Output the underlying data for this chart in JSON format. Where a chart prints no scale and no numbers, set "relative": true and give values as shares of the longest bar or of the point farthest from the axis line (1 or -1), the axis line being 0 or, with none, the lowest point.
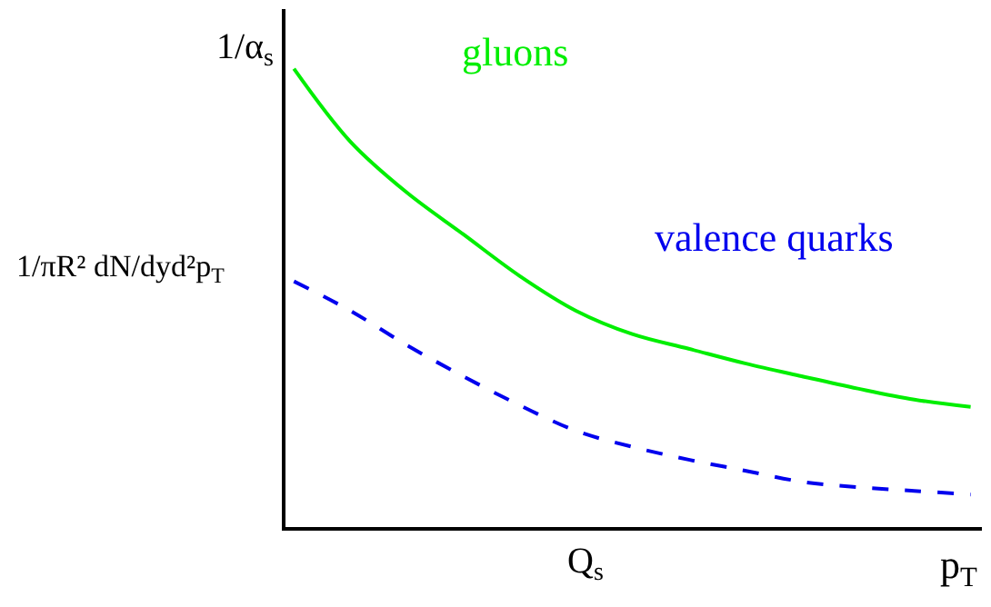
{
  "chart_data": {
    "type": "line",
    "relative": true,
    "xlabel": "p$_{T}$",
    "ylabel": "1/πR² dN/dyd²p$_{T}$",
    "categories": [
      null,
      null,
      null,
      null,
      null,
      null,
      null,
      null,
      null,
      null,
      null,
      null,
      null
    ],
    "series": [
      {
        "name": "gluons",
        "color": "#00ee00",
        "line_style": "solid",
        "values": [
          1.0,
          0.841,
          0.73,
          0.639,
          0.548,
          0.472,
          0.421,
          0.389,
          0.357,
          0.329,
          0.302,
          0.278,
          0.262
        ]
      },
      {
        "name": "valence quarks",
        "color": "#0000ee",
        "line_style": "dashed",
        "values": [
          0.536,
          0.472,
          0.397,
          0.329,
          0.266,
          0.21,
          0.175,
          0.147,
          0.123,
          0.099,
          0.087,
          0.079,
          0.071
        ]
      }
    ],
    "annotations": [
      "1/α$_{s}$",
      "Q$_{s}$"
    ],
    "legend": false,
    "marker": "none"
  }
}
